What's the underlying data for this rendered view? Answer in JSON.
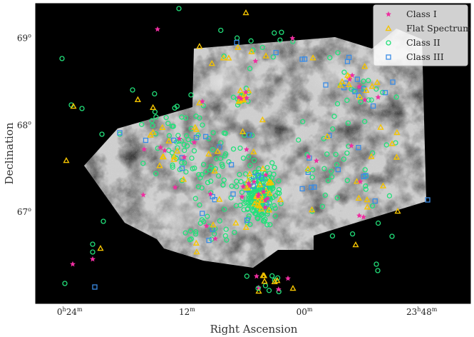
{
  "chart_data": {
    "type": "scatter",
    "title": "",
    "xlabel": "Right Ascension",
    "ylabel": "Declination",
    "xlim_hours": [
      0.458,
      23.717
    ],
    "ylim_deg": [
      65.95,
      69.4
    ],
    "x_ticks": [
      {
        "value": 0.4,
        "label_main": "0",
        "label_sup": "h",
        "label_min": "24",
        "label_minsup": "m"
      },
      {
        "value": 0.2,
        "label_main": "12",
        "label_sup": "m",
        "label_min": "",
        "label_minsup": ""
      },
      {
        "value": 0.0,
        "label_main": "00",
        "label_sup": "m",
        "label_min": "",
        "label_minsup": ""
      },
      {
        "value": 23.8,
        "label_main": "23",
        "label_sup": "h",
        "label_min": "48",
        "label_minsup": "m"
      }
    ],
    "y_ticks": [
      {
        "value": 69,
        "label": "69",
        "sup": "o"
      },
      {
        "value": 68,
        "label": "68",
        "sup": "o"
      },
      {
        "value": 67,
        "label": "67",
        "sup": "o"
      }
    ],
    "legend": {
      "placement": "top-right",
      "entries": [
        {
          "label": "Class I",
          "marker": "star",
          "color": "#ee2ea0"
        },
        {
          "label": "Flat Spectrum",
          "marker": "triangle",
          "color": "#f5c400"
        },
        {
          "label": "Class II",
          "marker": "circle",
          "color": "#22e07a"
        },
        {
          "label": "Class III",
          "marker": "square",
          "color": "#3a8ce6"
        }
      ]
    },
    "background": "black",
    "image_background": "grayscale nebula mosaic"
  }
}
